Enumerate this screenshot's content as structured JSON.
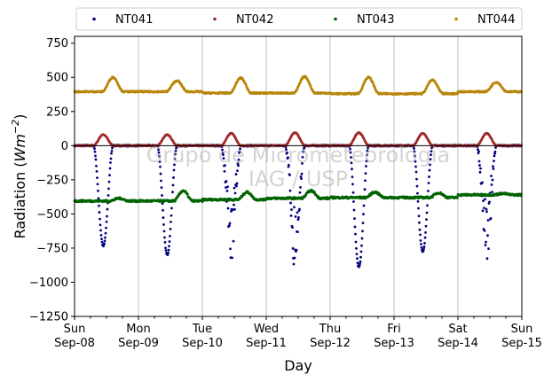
{
  "chart_data": {
    "type": "scatter",
    "title": "",
    "xlabel": "Day",
    "ylabel_main": "Radiation (",
    "ylabel_units": "Wm",
    "ylabel_exp": "−2",
    "ylabel_close": ")",
    "ylim": [
      -1250,
      800
    ],
    "yticks": [
      "750",
      "500",
      "250",
      "0",
      "−250",
      "−500",
      "−750",
      "−1000",
      "−1250"
    ],
    "ytick_values": [
      750,
      500,
      250,
      0,
      -250,
      -500,
      -750,
      -1000,
      -1250
    ],
    "xlim": [
      0,
      7
    ],
    "xticks": [
      {
        "day": "Sun",
        "date": "Sep-08",
        "value": 0
      },
      {
        "day": "Mon",
        "date": "Sep-09",
        "value": 1
      },
      {
        "day": "Tue",
        "date": "Sep-10",
        "value": 2
      },
      {
        "day": "Wed",
        "date": "Sep-11",
        "value": 3
      },
      {
        "day": "Thu",
        "date": "Sep-12",
        "value": 4
      },
      {
        "day": "Fri",
        "date": "Sep-13",
        "value": 5
      },
      {
        "day": "Sat",
        "date": "Sep-14",
        "value": 6
      },
      {
        "day": "Sun",
        "date": "Sep-15",
        "value": 7
      }
    ],
    "grid": "vertical",
    "legend_position": "top",
    "watermark_line1": "Grupo de Micrometeorologia",
    "watermark_line2": "IAG / USP",
    "zero_line": 0,
    "series": [
      {
        "name": "NT041",
        "color": "#00007f",
        "baseline": 0,
        "daily_peak": [
          -735,
          -800,
          -870,
          -900,
          -890,
          -775,
          -840
        ],
        "peak_time": 0.45,
        "width": 0.155
      },
      {
        "name": "NT042",
        "color": "#a02a2a",
        "baseline": 0,
        "daily_peak": [
          80,
          80,
          90,
          95,
          95,
          90,
          90
        ],
        "peak_time": 0.45,
        "width": 0.16
      },
      {
        "name": "NT043",
        "color": "#006400",
        "baseline": -390,
        "daily_peak": [
          -385,
          -330,
          -340,
          -330,
          -340,
          -345,
          -350
        ],
        "daily_min": [
          -405,
          -405,
          -395,
          -385,
          -380,
          -380,
          -360
        ],
        "peak_time": 0.7,
        "width": 0.15
      },
      {
        "name": "NT044",
        "color": "#b8860b",
        "baseline": 395,
        "daily_peak": [
          500,
          475,
          495,
          505,
          500,
          480,
          465
        ],
        "daily_min": [
          395,
          395,
          385,
          385,
          380,
          380,
          395
        ],
        "peak_time": 0.6,
        "width": 0.17
      }
    ]
  }
}
